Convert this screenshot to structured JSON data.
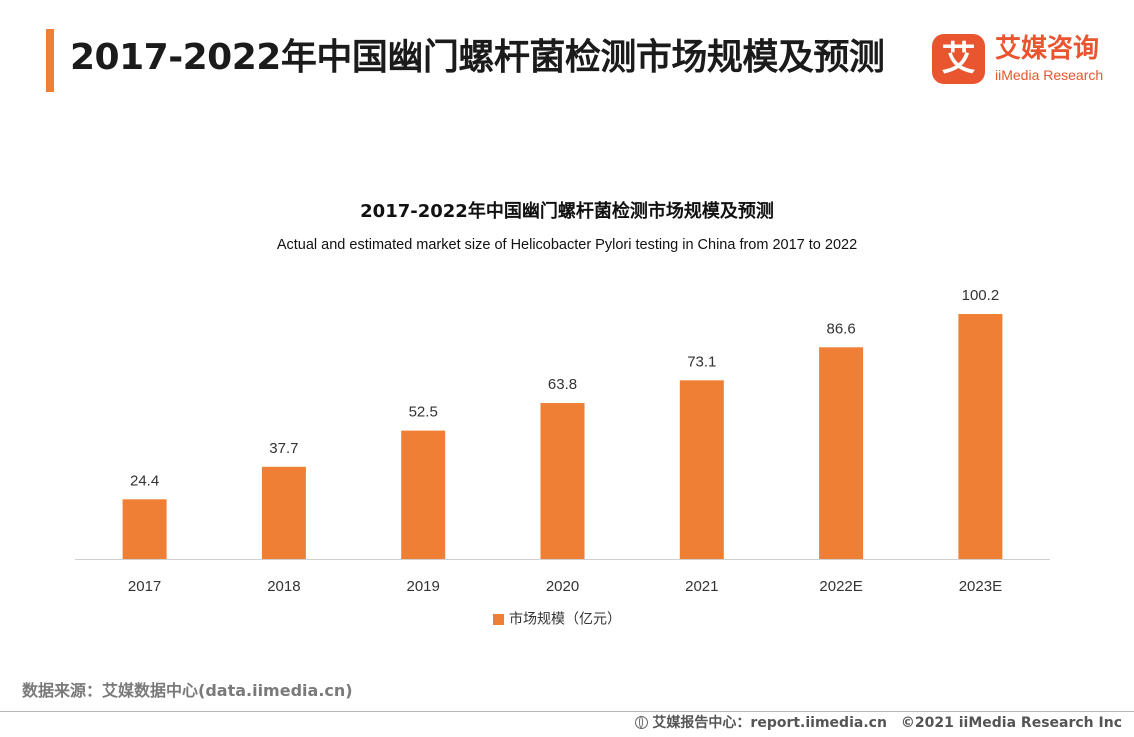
{
  "header": {
    "title": "2017-2022年中国幽门螺杆菌检测市场规模及预测",
    "accent_color": "#ee7f35"
  },
  "brand": {
    "mark": "艾",
    "name_cn": "艾媒咨询",
    "name_en": "iiMedia Research",
    "color": "#e8552f"
  },
  "chart_data": {
    "type": "bar",
    "title": "2017-2022年中国幽门螺杆菌检测市场规模及预测",
    "subtitle": "Actual and estimated market size of Helicobacter Pylori testing in China from 2017 to 2022",
    "categories": [
      "2017",
      "2018",
      "2019",
      "2020",
      "2021",
      "2022E",
      "2023E"
    ],
    "series": [
      {
        "name": "市场规模（亿元）",
        "values": [
          24.4,
          37.7,
          52.5,
          63.8,
          73.1,
          86.6,
          100.2
        ],
        "labels": [
          "24.4",
          "37.7",
          "52.5",
          "63.8",
          "73.1",
          "86.6",
          "100.2"
        ],
        "color": "#ee7f35"
      }
    ],
    "ylim": [
      0,
      100.2
    ],
    "grid": false,
    "legend_position": "bottom-center"
  },
  "source": {
    "text": "数据来源：艾媒数据中心(data.iimedia.cn)"
  },
  "footer": {
    "report_center": "艾媒报告中心：report.iimedia.cn",
    "copyright": "©2021  iiMedia Research  Inc"
  }
}
